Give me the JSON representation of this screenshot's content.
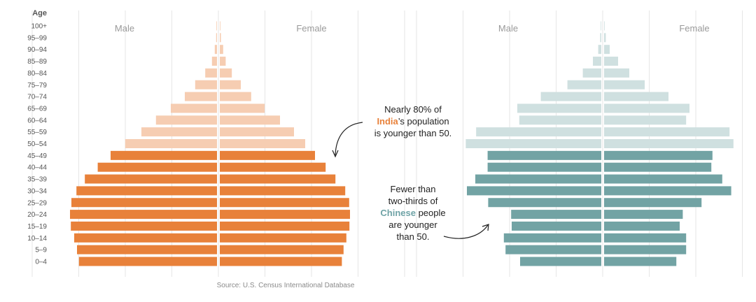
{
  "chart_data": [
    {
      "type": "bar",
      "subtype": "population-pyramid",
      "country": "India",
      "age_axis_title": "Age",
      "male_label": "Male",
      "female_label": "Female",
      "categories": [
        "100+",
        "95-99",
        "90-94",
        "85-89",
        "80-84",
        "75-79",
        "70-74",
        "65-69",
        "60-64",
        "55-59",
        "50-54",
        "45-49",
        "40-44",
        "35-39",
        "30-34",
        "25-29",
        "20-24",
        "15-19",
        "10-14",
        "5-9",
        "0-4"
      ],
      "highlight_from_index": 11,
      "series": [
        {
          "name": "Male",
          "values": [
            0.2,
            0.3,
            0.8,
            1.8,
            4.2,
            7.8,
            11.5,
            16.5,
            21.8,
            27.0,
            32.8,
            38.0,
            42.6,
            47.2,
            50.2,
            52.0,
            52.5,
            52.2,
            51.0,
            50.0,
            49.3
          ]
        },
        {
          "name": "Female",
          "values": [
            0.2,
            0.4,
            1.2,
            2.1,
            4.3,
            7.5,
            11.2,
            16.0,
            21.5,
            26.5,
            30.5,
            34.0,
            37.8,
            41.3,
            44.8,
            46.2,
            46.5,
            46.3,
            45.2,
            44.2,
            43.6
          ]
        }
      ],
      "colors": {
        "older": "#f6cdb2",
        "younger": "#e8813a"
      }
    },
    {
      "type": "bar",
      "subtype": "population-pyramid",
      "country": "China",
      "male_label": "Male",
      "female_label": "Female",
      "categories": [
        "100+",
        "95-99",
        "90-94",
        "85-89",
        "80-84",
        "75-79",
        "70-74",
        "65-69",
        "60-64",
        "55-59",
        "50-54",
        "45-49",
        "40-44",
        "35-39",
        "30-34",
        "25-29",
        "20-24",
        "15-19",
        "10-14",
        "5-9",
        "0-4"
      ],
      "highlight_from_index": 11,
      "series": [
        {
          "name": "Male",
          "values": [
            0.2,
            0.4,
            1.1,
            3.0,
            6.6,
            12.1,
            21.6,
            30.0,
            29.3,
            44.7,
            48.4,
            40.6,
            40.6,
            45.0,
            48.0,
            40.4,
            32.2,
            32.0,
            34.8,
            34.2,
            29.0
          ]
        },
        {
          "name": "Female",
          "values": [
            0.2,
            0.6,
            2.0,
            5.0,
            9.0,
            14.5,
            23.0,
            30.5,
            29.3,
            44.8,
            46.2,
            38.7,
            38.3,
            42.2,
            45.4,
            34.8,
            28.1,
            27.0,
            29.3,
            29.3,
            25.8
          ]
        }
      ],
      "colors": {
        "older": "#cfe0e0",
        "younger": "#72a3a4"
      }
    }
  ],
  "annotations": {
    "india": {
      "line1": "Nearly 80% of",
      "highlight": "India",
      "line2_rest": "’s population",
      "line3": "is younger than 50."
    },
    "china": {
      "line1": "Fewer than",
      "line2": "two-thirds of",
      "highlight": "Chinese",
      "line3_rest": " people",
      "line4": "are younger",
      "line5": "than 50."
    }
  },
  "source": "Source: U.S. Census International Database"
}
